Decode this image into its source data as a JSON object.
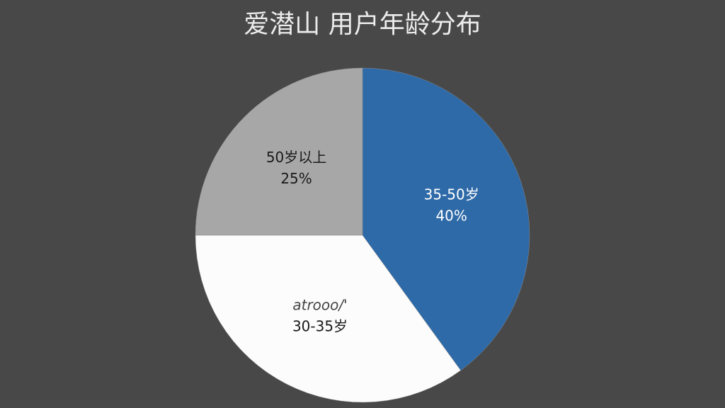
{
  "chart_data": {
    "type": "pie",
    "title": "爱潜山  用户年龄分布",
    "categories": [
      "35-50岁",
      "30-35岁",
      "50岁以上"
    ],
    "values": [
      40,
      35,
      25
    ],
    "value_labels": [
      "40%",
      null,
      "25%"
    ],
    "colors": [
      "#2e6aa8",
      "#fcfcfc",
      "#a7a7a7"
    ],
    "annotation": "atrooo/'"
  }
}
